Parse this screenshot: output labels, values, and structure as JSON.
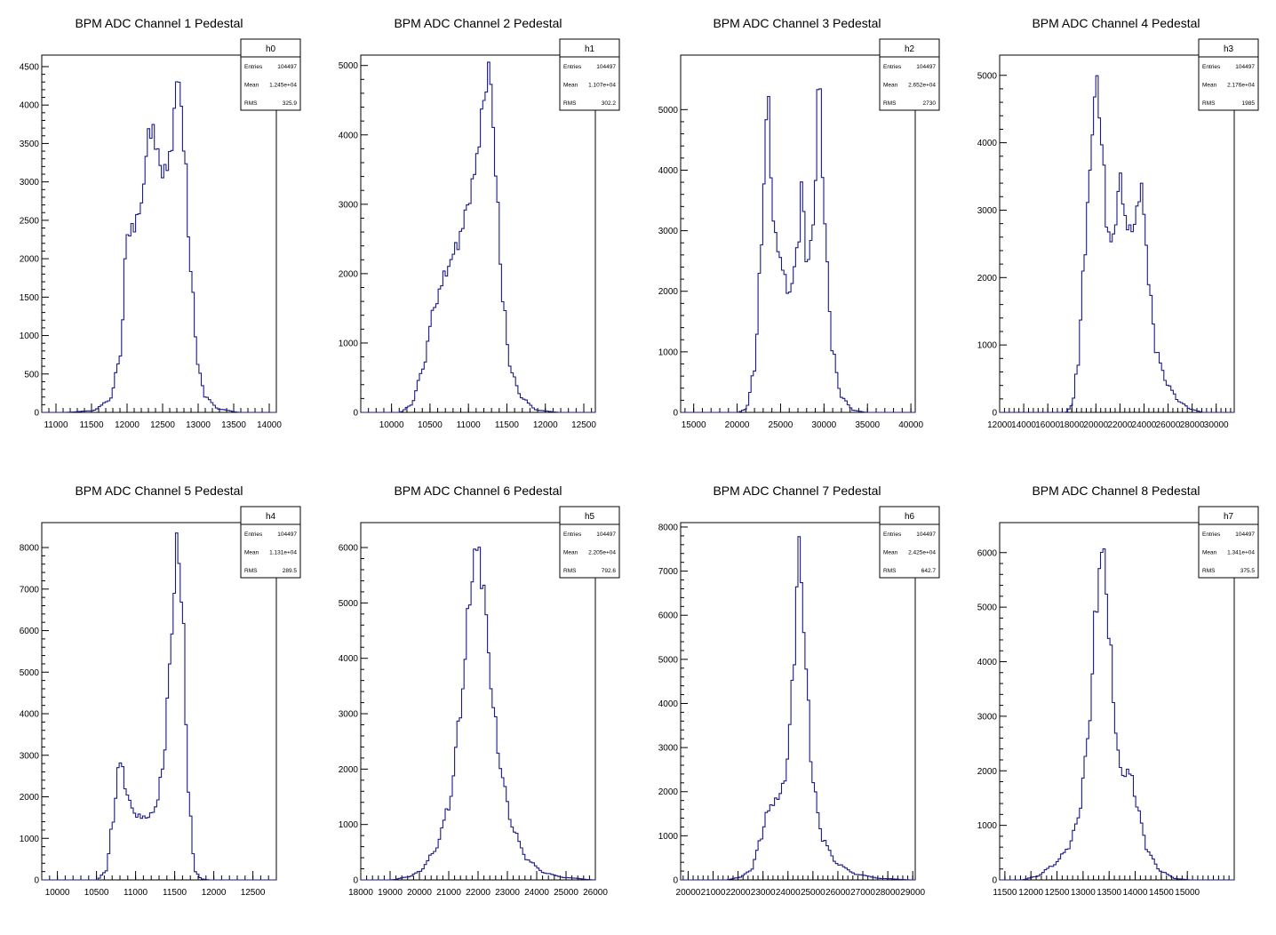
{
  "chart_data": [
    {
      "type": "histogram",
      "title": "BPM ADC Channel 1 Pedestal",
      "xlim": [
        10800,
        14100
      ],
      "ylim": [
        0,
        4650
      ],
      "x_ticks": [
        11000,
        11500,
        12000,
        12500,
        13000,
        13500,
        14000
      ],
      "x_ticks_labels": [
        "11000",
        "11500",
        "12000",
        "12500",
        "13000",
        "13500",
        "14000"
      ],
      "y_ticks": [
        0,
        500,
        1000,
        1500,
        2000,
        2500,
        3000,
        3500,
        4000,
        4500
      ],
      "y_ticks_labels": [
        "0",
        "500",
        "1000",
        "1500",
        "2000",
        "2500",
        "3000",
        "3500",
        "4000",
        "4500"
      ],
      "stats": {
        "name": "h0",
        "entries": "104497",
        "mean": "1.245e+04",
        "rms": "325.9"
      },
      "peaks": [
        [
          11100,
          0
        ],
        [
          11500,
          20
        ],
        [
          11750,
          150
        ],
        [
          11900,
          700
        ],
        [
          12000,
          2300
        ],
        [
          12100,
          2420
        ],
        [
          12200,
          2700
        ],
        [
          12300,
          3600
        ],
        [
          12350,
          3700
        ],
        [
          12400,
          3500
        ],
        [
          12500,
          3100
        ],
        [
          12600,
          3300
        ],
        [
          12720,
          4400
        ],
        [
          12800,
          3500
        ],
        [
          12900,
          1800
        ],
        [
          13000,
          600
        ],
        [
          13100,
          200
        ],
        [
          13300,
          40
        ],
        [
          13600,
          0
        ]
      ],
      "color": "#1a1a8c"
    },
    {
      "type": "histogram",
      "title": "BPM ADC Channel 2 Pedestal",
      "xlim": [
        9600,
        12650
      ],
      "ylim": [
        0,
        5150
      ],
      "x_ticks": [
        10000,
        10500,
        11000,
        11500,
        12000,
        12500
      ],
      "x_ticks_labels": [
        "10000",
        "10500",
        "11000",
        "11500",
        "12000",
        "12500"
      ],
      "y_ticks": [
        0,
        1000,
        2000,
        3000,
        4000,
        5000
      ],
      "y_ticks_labels": [
        "0",
        "1000",
        "2000",
        "3000",
        "4000",
        "5000"
      ],
      "stats": {
        "name": "h1",
        "entries": "104497",
        "mean": "1.107e+04",
        "rms": "302.2"
      },
      "peaks": [
        [
          10100,
          0
        ],
        [
          10250,
          100
        ],
        [
          10400,
          600
        ],
        [
          10550,
          1500
        ],
        [
          10700,
          2000
        ],
        [
          10850,
          2400
        ],
        [
          11000,
          3000
        ],
        [
          11100,
          3600
        ],
        [
          11200,
          4500
        ],
        [
          11280,
          5000
        ],
        [
          11350,
          3500
        ],
        [
          11450,
          1600
        ],
        [
          11550,
          600
        ],
        [
          11700,
          200
        ],
        [
          11900,
          30
        ],
        [
          12200,
          0
        ]
      ],
      "color": "#1a1a8c"
    },
    {
      "type": "histogram",
      "title": "BPM ADC Channel 3 Pedestal",
      "xlim": [
        13500,
        40500
      ],
      "ylim": [
        0,
        5900
      ],
      "x_ticks": [
        15000,
        20000,
        25000,
        30000,
        35000,
        40000
      ],
      "x_ticks_labels": [
        "15000",
        "20000",
        "25000",
        "30000",
        "35000",
        "40000"
      ],
      "y_ticks": [
        0,
        1000,
        2000,
        3000,
        4000,
        5000
      ],
      "y_ticks_labels": [
        "0",
        "1000",
        "2000",
        "3000",
        "4000",
        "5000"
      ],
      "stats": {
        "name": "h2",
        "entries": "104497",
        "mean": "2.652e+04",
        "rms": "2730"
      },
      "peaks": [
        [
          20000,
          0
        ],
        [
          21000,
          50
        ],
        [
          22000,
          700
        ],
        [
          22800,
          2800
        ],
        [
          23500,
          5250
        ],
        [
          24200,
          3100
        ],
        [
          25000,
          2500
        ],
        [
          26000,
          1950
        ],
        [
          27000,
          2700
        ],
        [
          27500,
          3800
        ],
        [
          28000,
          2400
        ],
        [
          28700,
          3000
        ],
        [
          29500,
          5600
        ],
        [
          30000,
          3200
        ],
        [
          31000,
          1000
        ],
        [
          32000,
          250
        ],
        [
          33500,
          30
        ],
        [
          35000,
          0
        ]
      ],
      "color": "#1a1a8c"
    },
    {
      "type": "histogram",
      "title": "BPM ADC Channel 4 Pedestal",
      "xlim": [
        12000,
        31500
      ],
      "ylim": [
        0,
        5300
      ],
      "x_ticks": [
        12000,
        14000,
        16000,
        18000,
        20000,
        22000,
        24000,
        26000,
        28000,
        30000
      ],
      "x_ticks_labels": [
        "12000",
        "14000",
        "16000",
        "18000",
        "20000",
        "22000",
        "24000",
        "26000",
        "28000",
        "30000"
      ],
      "y_ticks": [
        0,
        1000,
        2000,
        3000,
        4000,
        5000
      ],
      "y_ticks_labels": [
        "0",
        "1000",
        "2000",
        "3000",
        "4000",
        "5000"
      ],
      "stats": {
        "name": "h3",
        "entries": "104497",
        "mean": "2.176e+04",
        "rms": "1985"
      },
      "peaks": [
        [
          17500,
          0
        ],
        [
          18000,
          100
        ],
        [
          18500,
          700
        ],
        [
          19000,
          2200
        ],
        [
          19600,
          3800
        ],
        [
          20000,
          5000
        ],
        [
          20500,
          4000
        ],
        [
          21000,
          2600
        ],
        [
          21500,
          2600
        ],
        [
          22000,
          3500
        ],
        [
          22500,
          2800
        ],
        [
          23000,
          2700
        ],
        [
          23800,
          3300
        ],
        [
          24500,
          1800
        ],
        [
          25000,
          900
        ],
        [
          26000,
          400
        ],
        [
          27000,
          150
        ],
        [
          28000,
          40
        ],
        [
          29000,
          0
        ]
      ],
      "color": "#1a1a8c"
    },
    {
      "type": "histogram",
      "title": "BPM ADC Channel 5 Pedestal",
      "xlim": [
        9800,
        12800
      ],
      "ylim": [
        0,
        8600
      ],
      "x_ticks": [
        10000,
        10500,
        11000,
        11500,
        12000,
        12500
      ],
      "x_ticks_labels": [
        "10000",
        "10500",
        "11000",
        "11500",
        "12000",
        "12500"
      ],
      "y_ticks": [
        0,
        1000,
        2000,
        3000,
        4000,
        5000,
        6000,
        7000,
        8000
      ],
      "y_ticks_labels": [
        "0",
        "1000",
        "2000",
        "3000",
        "4000",
        "5000",
        "6000",
        "7000",
        "8000"
      ],
      "stats": {
        "name": "h4",
        "entries": "104497",
        "mean": "1.131e+04",
        "rms": "289.5"
      },
      "peaks": [
        [
          10500,
          0
        ],
        [
          10620,
          200
        ],
        [
          10700,
          1300
        ],
        [
          10800,
          2900
        ],
        [
          10900,
          2000
        ],
        [
          11000,
          1550
        ],
        [
          11150,
          1500
        ],
        [
          11250,
          1700
        ],
        [
          11350,
          2700
        ],
        [
          11450,
          5500
        ],
        [
          11530,
          8200
        ],
        [
          11600,
          6500
        ],
        [
          11680,
          2000
        ],
        [
          11760,
          200
        ],
        [
          11850,
          20
        ],
        [
          11950,
          0
        ]
      ],
      "color": "#1a1a8c"
    },
    {
      "type": "histogram",
      "title": "BPM ADC Channel 6 Pedestal",
      "xlim": [
        18000,
        26000
      ],
      "ylim": [
        0,
        6450
      ],
      "x_ticks": [
        18000,
        19000,
        20000,
        21000,
        22000,
        23000,
        24000,
        25000,
        26000
      ],
      "x_ticks_labels": [
        "18000",
        "19000",
        "20000",
        "21000",
        "22000",
        "23000",
        "24000",
        "25000",
        "26000"
      ],
      "y_ticks": [
        0,
        1000,
        2000,
        3000,
        4000,
        5000,
        6000
      ],
      "y_ticks_labels": [
        "0",
        "1000",
        "2000",
        "3000",
        "4000",
        "5000",
        "6000"
      ],
      "stats": {
        "name": "h5",
        "entries": "104497",
        "mean": "2.205e+04",
        "rms": "792.6"
      },
      "peaks": [
        [
          19000,
          0
        ],
        [
          19600,
          50
        ],
        [
          20000,
          150
        ],
        [
          20500,
          500
        ],
        [
          21000,
          1300
        ],
        [
          21400,
          3000
        ],
        [
          21700,
          5000
        ],
        [
          21950,
          6100
        ],
        [
          22200,
          5200
        ],
        [
          22500,
          3200
        ],
        [
          22800,
          1900
        ],
        [
          23200,
          900
        ],
        [
          23700,
          350
        ],
        [
          24300,
          120
        ],
        [
          25000,
          40
        ],
        [
          26000,
          0
        ]
      ],
      "color": "#1a1a8c"
    },
    {
      "type": "histogram",
      "title": "BPM ADC Channel 7 Pedestal",
      "xlim": [
        19700,
        29100
      ],
      "ylim": [
        0,
        8100
      ],
      "x_ticks": [
        20000,
        21000,
        22000,
        23000,
        24000,
        25000,
        26000,
        27000,
        28000,
        29000
      ],
      "x_ticks_labels": [
        "20000",
        "21000",
        "22000",
        "23000",
        "24000",
        "25000",
        "26000",
        "27000",
        "28000",
        "29000"
      ],
      "y_ticks": [
        0,
        1000,
        2000,
        3000,
        4000,
        5000,
        6000,
        7000,
        8000
      ],
      "y_ticks_labels": [
        "0",
        "1000",
        "2000",
        "3000",
        "4000",
        "5000",
        "6000",
        "7000",
        "8000"
      ],
      "stats": {
        "name": "h6",
        "entries": "104497",
        "mean": "2.425e+04",
        "rms": "642.7"
      },
      "peaks": [
        [
          21500,
          0
        ],
        [
          22000,
          50
        ],
        [
          22500,
          200
        ],
        [
          22900,
          900
        ],
        [
          23200,
          1600
        ],
        [
          23600,
          1850
        ],
        [
          23900,
          2300
        ],
        [
          24200,
          4500
        ],
        [
          24450,
          7700
        ],
        [
          24700,
          5000
        ],
        [
          25000,
          2200
        ],
        [
          25400,
          900
        ],
        [
          26000,
          350
        ],
        [
          26800,
          120
        ],
        [
          27800,
          30
        ],
        [
          29000,
          0
        ]
      ],
      "color": "#1a1a8c"
    },
    {
      "type": "histogram",
      "title": "BPM ADC Channel 8 Pedestal",
      "xlim": [
        11400,
        15900
      ],
      "ylim": [
        0,
        6550
      ],
      "x_ticks": [
        11500,
        12000,
        12500,
        13000,
        13500,
        14000,
        14500,
        15000
      ],
      "x_ticks_labels": [
        "11500",
        "12000",
        "12500",
        "13000",
        "13500",
        "14000",
        "14500",
        "15000"
      ],
      "y_ticks": [
        0,
        1000,
        2000,
        3000,
        4000,
        5000,
        6000
      ],
      "y_ticks_labels": [
        "0",
        "1000",
        "2000",
        "3000",
        "4000",
        "5000",
        "6000"
      ],
      "stats": {
        "name": "h7",
        "entries": "104497",
        "mean": "1.341e+04",
        "rms": "375.5"
      },
      "peaks": [
        [
          11800,
          0
        ],
        [
          12100,
          60
        ],
        [
          12400,
          250
        ],
        [
          12700,
          550
        ],
        [
          12900,
          1100
        ],
        [
          13100,
          2600
        ],
        [
          13250,
          5000
        ],
        [
          13380,
          6200
        ],
        [
          13500,
          4500
        ],
        [
          13650,
          2500
        ],
        [
          13750,
          1900
        ],
        [
          13900,
          2000
        ],
        [
          14050,
          1300
        ],
        [
          14250,
          500
        ],
        [
          14500,
          150
        ],
        [
          14800,
          20
        ],
        [
          15100,
          0
        ]
      ],
      "color": "#1a1a8c"
    }
  ],
  "stats_labels": {
    "entries": "Entries",
    "mean": "Mean",
    "rms": "RMS"
  }
}
